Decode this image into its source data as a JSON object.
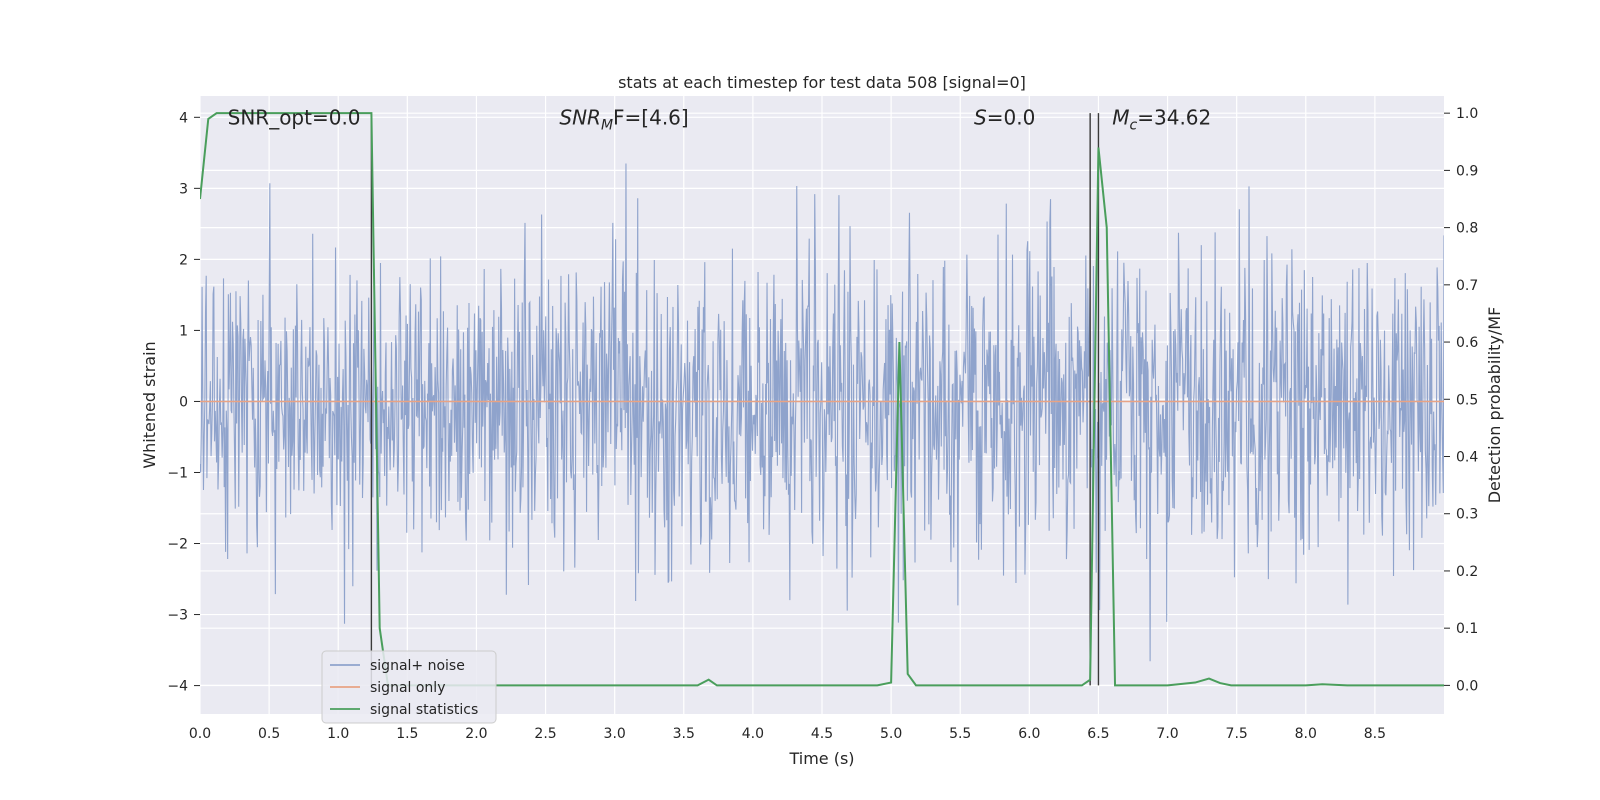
{
  "chart_data": {
    "type": "line",
    "title": "stats at each timestep for test data 508 [signal=0]",
    "xlabel": "Time (s)",
    "ylabel": "Whitened strain",
    "y2label": "Detection probability/MF",
    "xlim": [
      0,
      9.0
    ],
    "ylim": [
      -4.4,
      4.3
    ],
    "y2lim": [
      -0.05,
      1.03
    ],
    "x_ticks": [
      0.0,
      0.5,
      1.0,
      1.5,
      2.0,
      2.5,
      3.0,
      3.5,
      4.0,
      4.5,
      5.0,
      5.5,
      6.0,
      6.5,
      7.0,
      7.5,
      8.0,
      8.5
    ],
    "x_tick_labels": [
      "0.0",
      "0.5",
      "1.0",
      "1.5",
      "2.0",
      "2.5",
      "3.0",
      "3.5",
      "4.0",
      "4.5",
      "5.0",
      "5.5",
      "6.0",
      "6.5",
      "7.0",
      "7.5",
      "8.0",
      "8.5"
    ],
    "y_ticks": [
      4,
      3,
      2,
      1,
      0,
      -1,
      -2,
      -3,
      -4
    ],
    "y_tick_labels": [
      "4",
      "3",
      "2",
      "1",
      "0",
      "−1",
      "−2",
      "−3",
      "−4"
    ],
    "y2_ticks": [
      1.0,
      0.9,
      0.8,
      0.7,
      0.6,
      0.5,
      0.4,
      0.3,
      0.2,
      0.1,
      0.0
    ],
    "y2_tick_labels": [
      "1.0",
      "0.9",
      "0.8",
      "0.7",
      "0.6",
      "0.5",
      "0.4",
      "0.3",
      "0.2",
      "0.1",
      "0.0"
    ],
    "grid": true,
    "legend_position": "lower-left",
    "annotations": [
      {
        "text": "SNR_opt=0.0",
        "x": 0.2,
        "y": 4.0
      },
      {
        "text": "SNR",
        "sub": "M",
        "tail": "F=[4.6]",
        "x": 2.6,
        "y": 4.0,
        "italic": true
      },
      {
        "text": "S",
        "tail": "=0.0",
        "x": 5.6,
        "y": 4.0,
        "italic": true
      },
      {
        "text": "M",
        "sub": "c",
        "tail": "=34.62",
        "x": 6.6,
        "y": 4.0,
        "italic": true
      }
    ],
    "vlines": [
      1.24,
      6.44,
      6.5
    ],
    "series": [
      {
        "name": "signal+ noise",
        "color": "#8fa3cc",
        "noise": {
          "duration": 9.0,
          "samples": 1800,
          "std": 1.1,
          "seed": 508
        }
      },
      {
        "name": "signal only",
        "color": "#e8a385",
        "x": [
          0.0,
          9.0
        ],
        "y": [
          0.0,
          0.0
        ]
      },
      {
        "name": "signal statistics",
        "color": "#4a9e5c",
        "axis": "right",
        "x": [
          0.0,
          0.06,
          0.12,
          1.18,
          1.24,
          1.3,
          1.36,
          1.42,
          3.6,
          3.68,
          3.74,
          4.9,
          5.0,
          5.06,
          5.12,
          5.18,
          6.38,
          6.44,
          6.5,
          6.56,
          6.62,
          7.0,
          7.2,
          7.3,
          7.38,
          7.46,
          8.0,
          8.12,
          8.3,
          9.0
        ],
        "y": [
          0.85,
          0.99,
          1.0,
          1.0,
          1.0,
          0.1,
          0.0,
          0.0,
          0.0,
          0.01,
          0.0,
          0.0,
          0.005,
          0.6,
          0.02,
          0.0,
          0.0,
          0.01,
          0.94,
          0.8,
          0.0,
          0.0,
          0.005,
          0.012,
          0.004,
          0.0,
          0.0,
          0.002,
          0.0,
          0.0
        ]
      }
    ]
  }
}
